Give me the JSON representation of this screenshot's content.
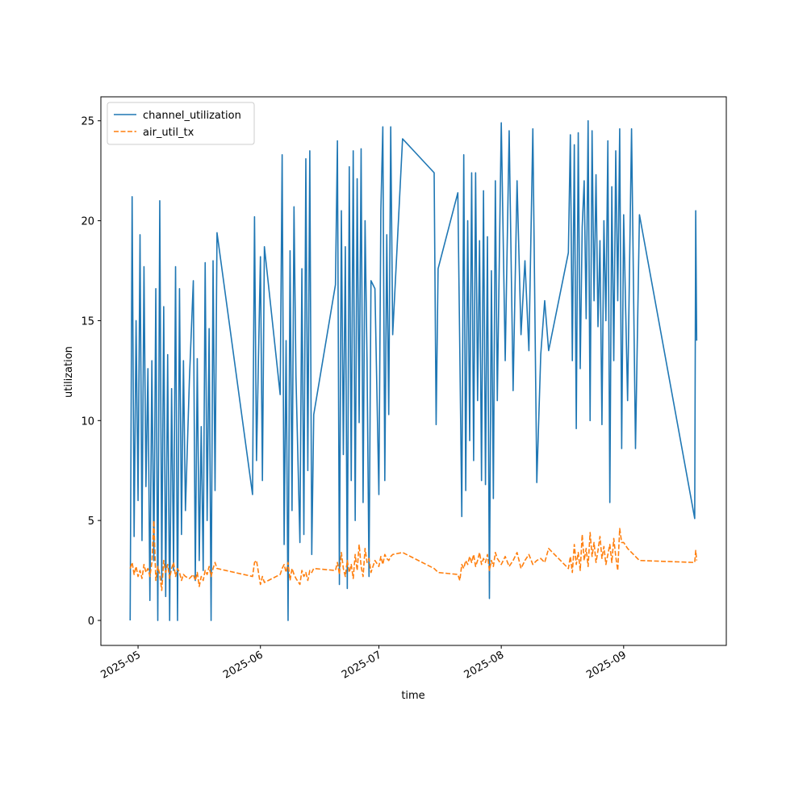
{
  "chart_data": {
    "type": "line",
    "xlabel": "time",
    "ylabel": "utilization",
    "x": [
      "2025-04-29T00:00",
      "2025-04-29T12:00",
      "2025-04-30T00:00",
      "2025-04-30T12:00",
      "2025-05-01T00:00",
      "2025-05-01T12:00",
      "2025-05-02T00:00",
      "2025-05-02T12:00",
      "2025-05-03T00:00",
      "2025-05-03T12:00",
      "2025-05-04T00:00",
      "2025-05-04T12:00",
      "2025-05-05T00:00",
      "2025-05-05T12:00",
      "2025-05-06T00:00",
      "2025-05-06T12:00",
      "2025-05-07T00:00",
      "2025-05-07T12:00",
      "2025-05-08T00:00",
      "2025-05-08T12:00",
      "2025-05-09T00:00",
      "2025-05-09T12:00",
      "2025-05-10T00:00",
      "2025-05-10T12:00",
      "2025-05-11T00:00",
      "2025-05-11T12:00",
      "2025-05-12T00:00",
      "2025-05-12T12:00",
      "2025-05-13T00:00",
      "2025-05-14T00:00",
      "2025-05-15T00:00",
      "2025-05-15T12:00",
      "2025-05-16T00:00",
      "2025-05-16T12:00",
      "2025-05-17T00:00",
      "2025-05-17T12:00",
      "2025-05-18T00:00",
      "2025-05-18T12:00",
      "2025-05-19T00:00",
      "2025-05-19T12:00",
      "2025-05-20T00:00",
      "2025-05-20T12:00",
      "2025-05-21T00:00",
      "2025-05-30T00:00",
      "2025-05-30T12:00",
      "2025-05-31T00:00",
      "2025-06-01T00:00",
      "2025-06-01T12:00",
      "2025-06-02T00:00",
      "2025-06-06T00:00",
      "2025-06-06T12:00",
      "2025-06-07T00:00",
      "2025-06-07T12:00",
      "2025-06-08T00:00",
      "2025-06-08T12:00",
      "2025-06-09T00:00",
      "2025-06-09T12:00",
      "2025-06-10T00:00",
      "2025-06-11T00:00",
      "2025-06-11T12:00",
      "2025-06-12T00:00",
      "2025-06-12T12:00",
      "2025-06-13T00:00",
      "2025-06-13T12:00",
      "2025-06-14T00:00",
      "2025-06-14T12:00",
      "2025-06-20T00:00",
      "2025-06-20T12:00",
      "2025-06-21T00:00",
      "2025-06-21T12:00",
      "2025-06-22T00:00",
      "2025-06-22T12:00",
      "2025-06-23T00:00",
      "2025-06-23T12:00",
      "2025-06-24T00:00",
      "2025-06-24T12:00",
      "2025-06-25T00:00",
      "2025-06-25T12:00",
      "2025-06-26T00:00",
      "2025-06-26T12:00",
      "2025-06-27T00:00",
      "2025-06-27T12:00",
      "2025-06-28T00:00",
      "2025-06-28T12:00",
      "2025-06-29T00:00",
      "2025-06-30T00:00",
      "2025-07-01T00:00",
      "2025-07-01T12:00",
      "2025-07-02T00:00",
      "2025-07-02T12:00",
      "2025-07-03T00:00",
      "2025-07-03T12:00",
      "2025-07-04T00:00",
      "2025-07-04T12:00",
      "2025-07-07T00:00",
      "2025-07-15T00:00",
      "2025-07-15T12:00",
      "2025-07-16T00:00",
      "2025-07-21T00:00",
      "2025-07-21T12:00",
      "2025-07-22T00:00",
      "2025-07-22T12:00",
      "2025-07-23T00:00",
      "2025-07-23T12:00",
      "2025-07-24T00:00",
      "2025-07-24T12:00",
      "2025-07-25T00:00",
      "2025-07-25T12:00",
      "2025-07-26T00:00",
      "2025-07-26T12:00",
      "2025-07-27T00:00",
      "2025-07-27T12:00",
      "2025-07-28T00:00",
      "2025-07-28T12:00",
      "2025-07-29T00:00",
      "2025-07-29T12:00",
      "2025-07-30T00:00",
      "2025-07-30T12:00",
      "2025-07-31T00:00",
      "2025-08-01T00:00",
      "2025-08-02T00:00",
      "2025-08-03T00:00",
      "2025-08-04T00:00",
      "2025-08-05T00:00",
      "2025-08-06T00:00",
      "2025-08-07T00:00",
      "2025-08-08T00:00",
      "2025-08-09T00:00",
      "2025-08-10T00:00",
      "2025-08-11T00:00",
      "2025-08-12T00:00",
      "2025-08-13T00:00",
      "2025-08-18T00:00",
      "2025-08-18T12:00",
      "2025-08-19T00:00",
      "2025-08-19T12:00",
      "2025-08-20T00:00",
      "2025-08-20T12:00",
      "2025-08-21T00:00",
      "2025-08-21T12:00",
      "2025-08-22T00:00",
      "2025-08-22T12:00",
      "2025-08-23T00:00",
      "2025-08-23T12:00",
      "2025-08-24T00:00",
      "2025-08-24T12:00",
      "2025-08-25T00:00",
      "2025-08-25T12:00",
      "2025-08-26T00:00",
      "2025-08-26T12:00",
      "2025-08-27T00:00",
      "2025-08-27T12:00",
      "2025-08-28T00:00",
      "2025-08-28T12:00",
      "2025-08-29T00:00",
      "2025-08-29T12:00",
      "2025-08-30T00:00",
      "2025-08-30T12:00",
      "2025-08-31T00:00",
      "2025-08-31T12:00",
      "2025-09-01T00:00",
      "2025-09-02T00:00",
      "2025-09-03T00:00",
      "2025-09-04T00:00",
      "2025-09-05T00:00",
      "2025-09-19T00:00",
      "2025-09-19T06:00",
      "2025-09-19T12:00"
    ],
    "series": [
      {
        "name": "channel_utilization",
        "color": "#1f77b4",
        "linestyle": "solid",
        "values": [
          0,
          21.2,
          4.2,
          15.0,
          6.0,
          19.3,
          4.0,
          17.7,
          6.7,
          12.6,
          1.0,
          13.0,
          3.0,
          16.6,
          0.0,
          21.0,
          2.0,
          15.7,
          1.2,
          13.3,
          0.0,
          11.6,
          2.5,
          17.7,
          0.0,
          16.6,
          4.3,
          13.0,
          5.5,
          12.0,
          17.0,
          2.0,
          13.1,
          3.0,
          9.7,
          2.5,
          17.9,
          5.0,
          14.6,
          0.0,
          18.0,
          6.5,
          19.4,
          6.3,
          20.2,
          8.0,
          18.2,
          7.0,
          18.7,
          11.3,
          23.3,
          3.8,
          14.0,
          0.0,
          18.5,
          5.5,
          20.7,
          12.2,
          3.9,
          17.6,
          4.3,
          23.1,
          7.5,
          23.5,
          3.3,
          10.3,
          16.8,
          24.0,
          1.8,
          20.5,
          8.3,
          18.7,
          1.6,
          22.7,
          7.0,
          23.5,
          5.0,
          22.1,
          9.9,
          23.6,
          5.9,
          20.0,
          13.0,
          2.2,
          17.0,
          16.6,
          6.3,
          20.5,
          24.7,
          7.0,
          19.3,
          10.3,
          24.7,
          14.3,
          24.1,
          22.4,
          9.8,
          17.6,
          21.4,
          13.5,
          5.2,
          23.3,
          6.5,
          20.0,
          9.0,
          22.4,
          8.0,
          22.4,
          11.0,
          19.0,
          7.0,
          21.5,
          6.8,
          19.2,
          1.1,
          17.5,
          6.1,
          22.0,
          11.0,
          24.9,
          13.0,
          24.5,
          11.5,
          22.0,
          14.3,
          18.0,
          13.5,
          24.6,
          6.9,
          13.3,
          16.0,
          13.5,
          18.4,
          24.3,
          13.0,
          23.8,
          9.6,
          24.4,
          12.6,
          19.7,
          22.0,
          15.1,
          25.0,
          10.0,
          24.5,
          16.0,
          22.3,
          14.7,
          19.0,
          9.8,
          20.0,
          15.0,
          24.0,
          5.9,
          21.7,
          13.0,
          23.5,
          16.0,
          24.6,
          8.6,
          20.3,
          11.0,
          24.6,
          8.6,
          20.3,
          5.1,
          20.5,
          14.0
        ]
      },
      {
        "name": "air_util_tx",
        "color": "#ff7f0e",
        "linestyle": "dashed",
        "values": [
          2.6,
          2.9,
          2.3,
          2.7,
          2.2,
          2.5,
          2.1,
          2.8,
          2.4,
          2.6,
          2.2,
          2.9,
          5.0,
          2.0,
          2.7,
          2.3,
          1.5,
          3.0,
          2.4,
          2.8,
          2.1,
          2.6,
          2.9,
          2.2,
          2.6,
          2.4,
          2.0,
          2.3,
          2.2,
          2.1,
          2.3,
          2.0,
          2.4,
          1.7,
          2.2,
          2.0,
          2.5,
          2.3,
          2.7,
          2.2,
          2.6,
          2.9,
          2.6,
          2.2,
          2.9,
          3.0,
          1.8,
          2.2,
          1.9,
          2.3,
          2.6,
          2.8,
          2.4,
          2.9,
          2.0,
          2.6,
          2.3,
          2.1,
          1.8,
          2.5,
          2.2,
          2.4,
          2.0,
          2.5,
          2.4,
          2.6,
          2.5,
          2.9,
          2.3,
          3.4,
          2.6,
          2.2,
          3.0,
          2.4,
          2.8,
          2.1,
          3.3,
          2.5,
          3.8,
          2.7,
          2.2,
          3.6,
          2.9,
          3.1,
          2.4,
          3.0,
          2.7,
          3.2,
          2.8,
          3.3,
          3.1,
          3.0,
          3.2,
          3.3,
          3.4,
          2.6,
          2.5,
          2.4,
          2.3,
          2.0,
          2.8,
          2.6,
          3.0,
          2.8,
          3.2,
          2.9,
          3.3,
          2.7,
          3.0,
          3.4,
          2.8,
          3.1,
          2.9,
          3.3,
          2.5,
          3.0,
          2.7,
          3.4,
          3.1,
          2.8,
          3.2,
          2.7,
          3.0,
          3.4,
          2.6,
          3.0,
          3.3,
          2.8,
          3.0,
          3.1,
          2.9,
          3.6,
          2.6,
          3.2,
          2.4,
          3.8,
          2.8,
          3.4,
          2.5,
          4.3,
          3.0,
          3.6,
          2.7,
          4.4,
          3.2,
          3.9,
          2.9,
          3.5,
          4.2,
          3.1,
          3.7,
          2.8,
          3.3,
          3.8,
          2.9,
          4.1,
          3.2,
          2.5,
          4.6,
          3.9,
          3.9,
          3.6,
          3.4,
          3.2,
          3.0,
          2.9,
          3.5,
          3.0
        ]
      }
    ],
    "xlim": [
      "2025-04-21T14:00",
      "2025-09-27T00:00"
    ],
    "xticks": [
      {
        "value": "2025-05-01",
        "label": "2025-05"
      },
      {
        "value": "2025-06-01",
        "label": "2025-06"
      },
      {
        "value": "2025-07-01",
        "label": "2025-07"
      },
      {
        "value": "2025-08-01",
        "label": "2025-08"
      },
      {
        "value": "2025-09-01",
        "label": "2025-09"
      }
    ],
    "ylim": [
      -1.25,
      26.2
    ],
    "yticks": [
      0,
      5,
      10,
      15,
      20,
      25
    ],
    "legend": "upper left",
    "grid": false
  }
}
